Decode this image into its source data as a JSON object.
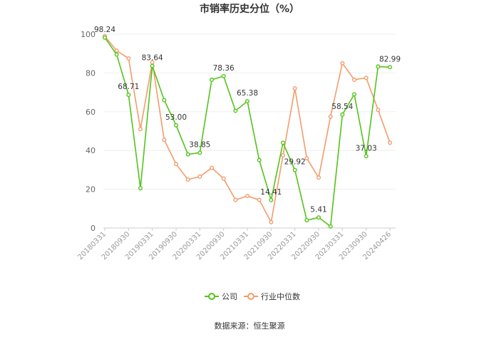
{
  "chart_data": {
    "type": "line",
    "title": "市销率历史分位（%）",
    "xlabel": "",
    "ylabel": "",
    "ylim": [
      0,
      100
    ],
    "yticks": [
      "0",
      "20",
      "40",
      "60",
      "80",
      "100"
    ],
    "x_tick_labels": [
      "20180331",
      "20180930",
      "20190331",
      "20190930",
      "20200331",
      "20200930",
      "20210331",
      "20210930",
      "20220331",
      "20220930",
      "20230331",
      "20230930",
      "20240426"
    ],
    "grid": true,
    "legend_position": "bottom-center",
    "series": [
      {
        "name": "公司",
        "color": "#52c41a",
        "values": [
          98.24,
          89.5,
          68.71,
          20.5,
          83.64,
          66.0,
          53.0,
          38.0,
          38.85,
          76.5,
          78.36,
          60.5,
          65.38,
          35.0,
          14.41,
          44.0,
          29.92,
          4.0,
          5.41,
          0.8,
          58.54,
          69.0,
          37.03,
          83.3,
          82.99
        ],
        "labels": [
          "98.24",
          "",
          "68.71",
          "",
          "83.64",
          "",
          "53.00",
          "",
          "38.85",
          "",
          "78.36",
          "",
          "65.38",
          "",
          "14.41",
          "",
          "29.92",
          "",
          "5.41",
          "",
          "58.54",
          "",
          "37.03",
          "",
          "82.99"
        ]
      },
      {
        "name": "行业中位数",
        "color": "#f39c6b",
        "values": [
          99.0,
          91.5,
          87.5,
          51.0,
          85.5,
          45.5,
          33.0,
          25.0,
          26.5,
          31.0,
          25.5,
          14.5,
          16.5,
          14.5,
          3.0,
          37.5,
          72.0,
          36.0,
          26.0,
          57.5,
          85.0,
          76.5,
          77.5,
          61.0,
          44.0
        ]
      }
    ]
  },
  "legend": {
    "company": "公司",
    "industry": "行业中位数"
  },
  "source": "数据来源：恒生聚源"
}
